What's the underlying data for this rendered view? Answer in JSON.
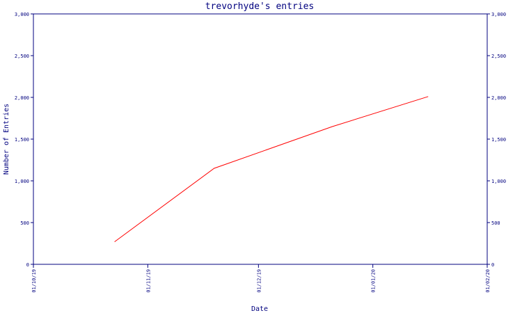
{
  "chart_data": {
    "type": "line",
    "title": "trevorhyde's entries",
    "xlabel": "Date",
    "ylabel": "Number of Entries",
    "x_tick_labels": [
      "01/10/19",
      "01/11/19",
      "01/12/19",
      "01/01/20",
      "01/02/20"
    ],
    "x_ticks": [
      "2019-10-01",
      "2019-11-01",
      "2019-12-01",
      "2020-01-01",
      "2020-02-01"
    ],
    "xlim": [
      "2019-10-01",
      "2020-02-01"
    ],
    "y_tick_labels": [
      "0",
      "500",
      "1,000",
      "1,500",
      "2,000",
      "2,500",
      "3,000"
    ],
    "y_ticks": [
      0,
      500,
      1000,
      1500,
      2000,
      2500,
      3000
    ],
    "ylim": [
      0,
      3000
    ],
    "grid": false,
    "colors": {
      "axis": "#00007f",
      "series": "#ff0000",
      "background": "#ffffff"
    },
    "series": [
      {
        "x": [
          "2019-10-23",
          "2019-11-19",
          "2019-12-21",
          "2020-01-16"
        ],
        "values": [
          270,
          1150,
          1650,
          2010
        ]
      }
    ]
  }
}
